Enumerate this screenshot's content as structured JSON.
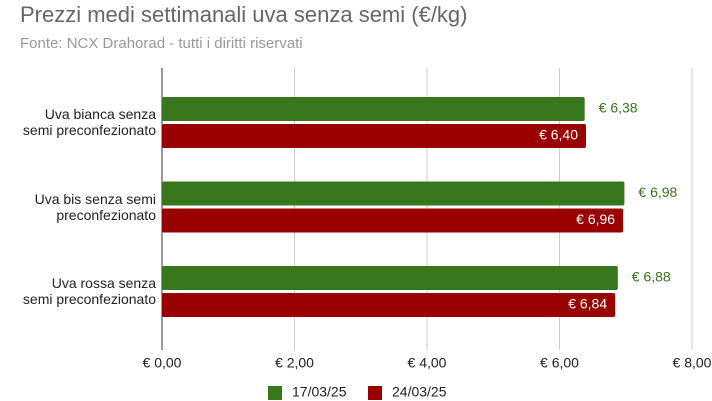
{
  "chart_data": {
    "type": "bar",
    "orientation": "horizontal",
    "title": "Prezzi medi settimanali uva senza semi (€/kg)",
    "subtitle": "Fonte: NCX Drahorad - tutti i diritti riservati",
    "categories": [
      "Uva bianca senza semi preconfezionato",
      "Uva bis senza semi preconfezionato",
      "Uva rossa senza semi preconfezionato"
    ],
    "series": [
      {
        "name": "17/03/25",
        "color": "#38761d",
        "values": [
          6.38,
          6.98,
          6.88
        ],
        "value_labels": [
          "€ 6,38",
          "€ 6,98",
          "€ 6,88"
        ]
      },
      {
        "name": "24/03/25",
        "color": "#990000",
        "values": [
          6.4,
          6.96,
          6.84
        ],
        "value_labels": [
          "€ 6,40",
          "€ 6,96",
          "€ 6,84"
        ]
      }
    ],
    "xlim": [
      0,
      8
    ],
    "xticks": [
      {
        "value": 0,
        "label": "€ 0,00"
      },
      {
        "value": 2,
        "label": "€ 2,00"
      },
      {
        "value": 4,
        "label": "€ 4,00"
      },
      {
        "value": 6,
        "label": "€ 6,00"
      },
      {
        "value": 8,
        "label": "€ 8,00"
      }
    ],
    "grid": true,
    "legend": "bottom"
  }
}
